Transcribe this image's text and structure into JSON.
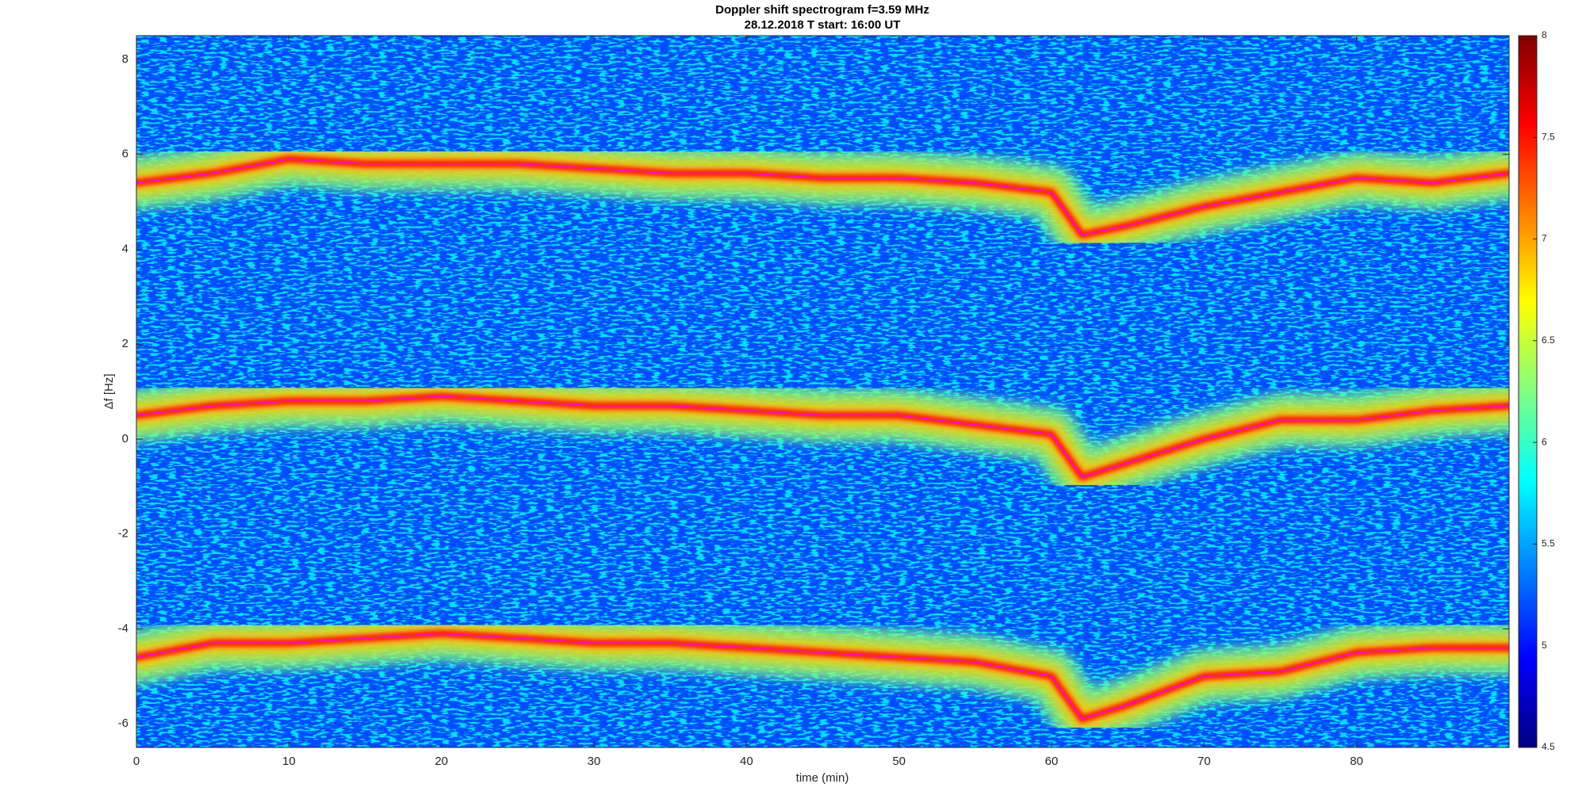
{
  "chart_data": {
    "type": "spectrogram",
    "title": "Doppler shift spectrogram f=3.59 MHz",
    "subtitle": "28.12.2018   T start: 16:00 UT",
    "xlabel": "time (min)",
    "ylabel": "Δf [Hz]",
    "xlim": [
      0,
      90
    ],
    "ylim": [
      -6.5,
      8.5
    ],
    "xticks": [
      0,
      10,
      20,
      30,
      40,
      50,
      60,
      70,
      80
    ],
    "yticks": [
      -6,
      -4,
      -2,
      0,
      2,
      4,
      6,
      8
    ],
    "x": [
      0,
      5,
      10,
      15,
      20,
      25,
      30,
      35,
      40,
      45,
      50,
      55,
      60,
      62,
      65,
      70,
      75,
      80,
      85,
      90
    ],
    "series": [
      {
        "color": "#ff00ff",
        "values": [
          5.4,
          5.6,
          5.9,
          5.8,
          5.8,
          5.8,
          5.7,
          5.6,
          5.6,
          5.5,
          5.5,
          5.4,
          5.2,
          4.3,
          4.5,
          4.9,
          5.2,
          5.5,
          5.4,
          5.6
        ]
      },
      {
        "color": "#ff00ff",
        "values": [
          0.5,
          0.7,
          0.8,
          0.8,
          0.9,
          0.8,
          0.7,
          0.7,
          0.6,
          0.5,
          0.5,
          0.3,
          0.1,
          -0.8,
          -0.5,
          0.0,
          0.4,
          0.4,
          0.6,
          0.7
        ]
      },
      {
        "color": "#ff00ff",
        "values": [
          -4.6,
          -4.3,
          -4.3,
          -4.2,
          -4.1,
          -4.2,
          -4.3,
          -4.3,
          -4.4,
          -4.5,
          -4.6,
          -4.7,
          -5.0,
          -5.9,
          -5.6,
          -5.0,
          -4.9,
          -4.5,
          -4.4,
          -4.4
        ]
      }
    ],
    "colorbar": {
      "colormap": "jet",
      "lim": [
        4.5,
        8
      ],
      "ticks": [
        4.5,
        5,
        5.5,
        6,
        6.5,
        7,
        7.5,
        8
      ]
    }
  }
}
